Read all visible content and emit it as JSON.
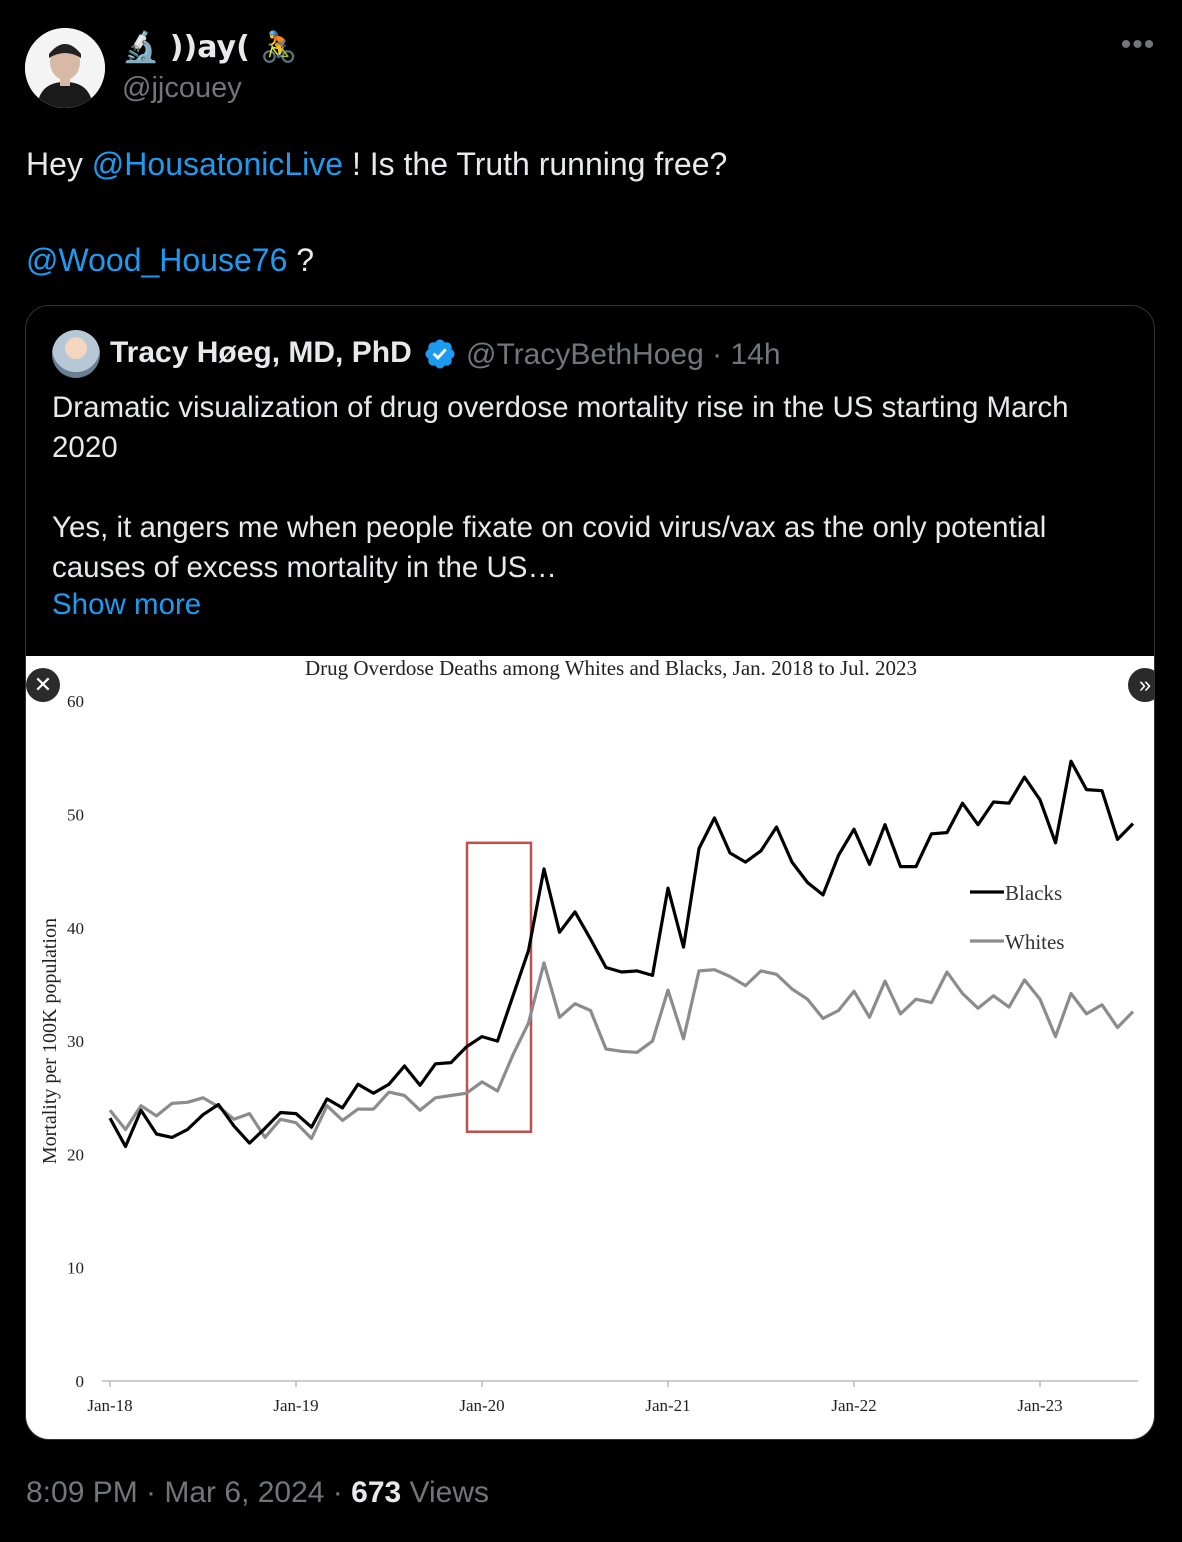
{
  "author": {
    "display_name": "🔬 ))ay( 🚴",
    "handle": "@jjcouey"
  },
  "tweet": {
    "text_prefix": "Hey ",
    "mention1": "@HousatonicLive",
    "text_mid": " !  Is the Truth running free?",
    "mention2": "@Wood_House76",
    "text_suffix": " ?"
  },
  "quoted": {
    "name": "Tracy Høeg, MD, PhD",
    "handle": "@TracyBethHoeg",
    "time": "· 14h",
    "paragraph1": "Dramatic visualization of drug overdose mortality rise in the US starting March 2020",
    "paragraph2": "Yes, it angers me when people fixate on covid virus/vax as the only potential causes of excess mortality in the US…",
    "show_more": "Show more"
  },
  "footer": {
    "time": "8:09 PM · Mar 6, 2024 · ",
    "views_count": "673",
    "views_label": " Views"
  },
  "colors": {
    "mention": "#1d9bf0",
    "blacks_series": "#000000",
    "whites_series": "#8c8c8c",
    "highlight_box": "#c0504d"
  },
  "icons": {
    "close": "close-icon",
    "next": "chevron-double-right-icon",
    "more": "more-icon",
    "verified": "verified-badge-icon"
  },
  "chart_data": {
    "type": "line",
    "title": "Drug Overdose Deaths among Whites and Blacks, Jan. 2018 to Jul. 2023",
    "ylabel": "Mortality per 100K population",
    "xlabel": "",
    "ylim": [
      0,
      60
    ],
    "yticks": [
      0,
      10,
      20,
      30,
      40,
      50,
      60
    ],
    "xticks": [
      "Jan-18",
      "Jan-19",
      "Jan-20",
      "Jan-21",
      "Jan-22",
      "Jan-23"
    ],
    "x_start": "Jan-18",
    "legend_position": "right",
    "highlight": {
      "from": "Jan-20",
      "to": "May-20",
      "ymin": 22,
      "ymax": 47.5
    },
    "series": [
      {
        "name": "Blacks",
        "values": [
          23.2,
          20.7,
          23.9,
          21.8,
          21.5,
          22.2,
          23.5,
          24.4,
          22.5,
          21.0,
          22.3,
          23.7,
          23.6,
          22.4,
          24.9,
          24.1,
          26.2,
          25.4,
          26.2,
          27.8,
          26.1,
          28.0,
          28.1,
          29.5,
          30.4,
          30.0,
          34.0,
          38.0,
          45.2,
          39.6,
          41.4,
          39.0,
          36.5,
          36.1,
          36.2,
          35.8,
          43.5,
          38.3,
          47.0,
          49.7,
          46.6,
          45.8,
          46.8,
          48.9,
          45.8,
          44.0,
          42.9,
          46.4,
          48.7,
          45.6,
          49.1,
          45.4,
          45.4,
          48.3,
          48.4,
          51.0,
          49.1,
          51.1,
          51.0,
          53.3,
          51.3,
          47.5,
          54.7,
          52.2,
          52.1,
          47.8,
          49.2
        ]
      },
      {
        "name": "Whites",
        "values": [
          23.9,
          22.2,
          24.3,
          23.4,
          24.5,
          24.6,
          25.0,
          24.2,
          23.1,
          23.6,
          21.5,
          23.1,
          22.8,
          21.4,
          24.3,
          23.0,
          24.0,
          24.0,
          25.5,
          25.2,
          23.9,
          25.0,
          25.2,
          25.4,
          26.4,
          25.6,
          28.8,
          31.6,
          36.9,
          32.1,
          33.3,
          32.7,
          29.3,
          29.1,
          29.0,
          30.0,
          34.5,
          30.2,
          36.2,
          36.3,
          35.7,
          34.9,
          36.2,
          35.9,
          34.6,
          33.7,
          32.0,
          32.7,
          34.4,
          32.1,
          35.3,
          32.4,
          33.7,
          33.4,
          36.1,
          34.2,
          32.9,
          34.0,
          33.0,
          35.4,
          33.7,
          30.4,
          34.2,
          32.4,
          33.2,
          31.2,
          32.6
        ]
      }
    ]
  }
}
